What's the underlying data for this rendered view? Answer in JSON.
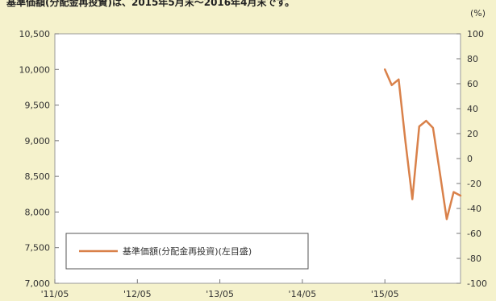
{
  "caption": "基準価額(分配金再投資)は、2015年5月末～2016年4月末です。",
  "chart_data": {
    "type": "line",
    "title": "",
    "xlabel": "",
    "ylabel": "",
    "y2label": "(%)",
    "x_ticks": [
      "'11/05",
      "'12/05",
      "'13/05",
      "'14/05",
      "'15/05"
    ],
    "x_range": [
      "2011-05",
      "2016-04"
    ],
    "ylim": [
      7000,
      10500
    ],
    "y_ticks": [
      "7,000",
      "7,500",
      "8,000",
      "8,500",
      "9,000",
      "9,500",
      "10,000",
      "10,500"
    ],
    "y2lim": [
      -100,
      100
    ],
    "y2_ticks": [
      "100",
      "80",
      "60",
      "40",
      "20",
      "0",
      "-20",
      "-40",
      "-60",
      "-80",
      "-100"
    ],
    "grid": false,
    "legend_position": "bottom-left",
    "series": [
      {
        "name": "基準価額(分配金再投資)(左目盛)",
        "axis": "left",
        "color": "#d9814a",
        "x": [
          "2015-05",
          "2015-06",
          "2015-07",
          "2015-08",
          "2015-09",
          "2015-10",
          "2015-11",
          "2015-12",
          "2016-01",
          "2016-02",
          "2016-03",
          "2016-04"
        ],
        "values": [
          10000,
          9780,
          9860,
          8980,
          8180,
          9200,
          9280,
          9180,
          8550,
          7900,
          8280,
          8230
        ]
      }
    ]
  }
}
